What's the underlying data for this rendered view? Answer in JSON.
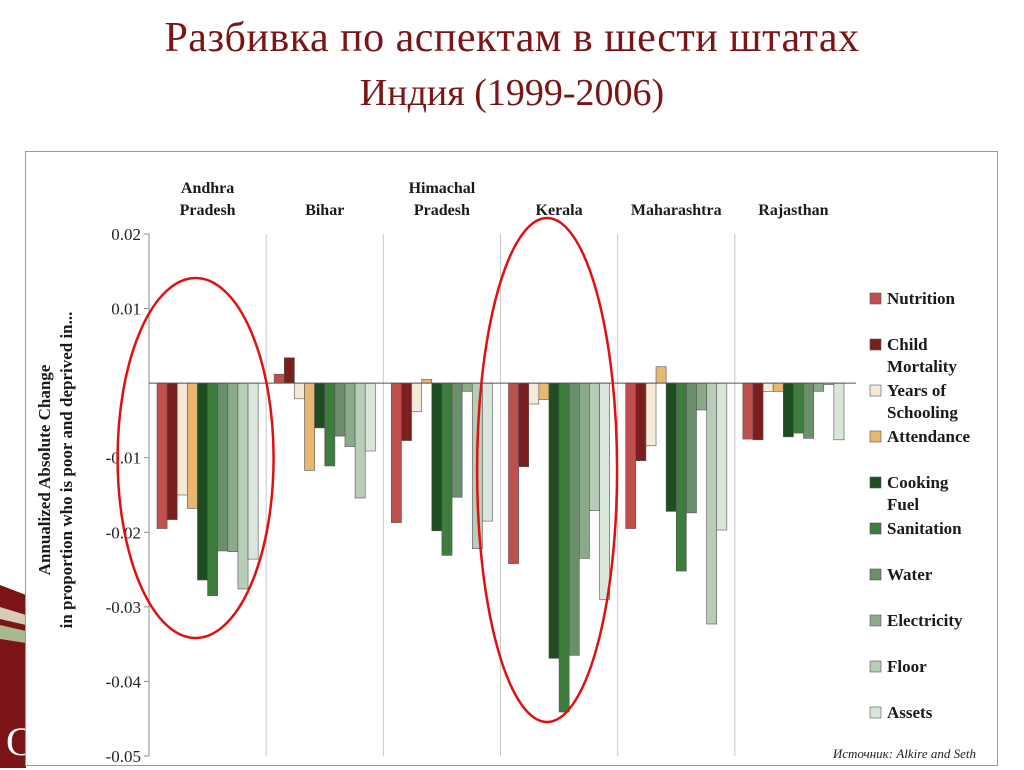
{
  "slide": {
    "title": "Разбивка по аспектам в шести штатах",
    "subtitle": "Индия (1999-2006)"
  },
  "chart_data": {
    "type": "bar",
    "ylabel_line1": "Annualized Absolute Change",
    "ylabel_line2": "in proportion who is poor and deprived in...",
    "ylim": [
      -0.05,
      0.02
    ],
    "yticks": [
      0.02,
      0.01,
      -0.01,
      -0.02,
      -0.03,
      -0.04,
      -0.05
    ],
    "ytick_labels": [
      "0.02",
      "0.01",
      "-0.01",
      "-0.02",
      "-0.03",
      "-0.04",
      "-0.05"
    ],
    "grid": false,
    "legend_position": "right",
    "categories": [
      "Andhra Pradesh",
      "Bihar",
      "Himachal Pradesh",
      "Kerala",
      "Maharashtra",
      "Rajasthan"
    ],
    "category_labels": [
      [
        "Andhra",
        "Pradesh"
      ],
      [
        "Bihar"
      ],
      [
        "Himachal",
        "Pradesh"
      ],
      [
        "Kerala"
      ],
      [
        "Maharashtra"
      ],
      [
        "Rajasthan"
      ]
    ],
    "series": [
      {
        "name": "Nutrition",
        "legend_lines": [
          "Nutrition"
        ],
        "color": "#c0504d",
        "values": [
          -0.0195,
          0.0012,
          -0.0187,
          -0.0242,
          -0.0195,
          -0.0075
        ]
      },
      {
        "name": "Child Mortality",
        "legend_lines": [
          "Child",
          "Mortality"
        ],
        "color": "#7b1e1e",
        "values": [
          -0.0183,
          0.0034,
          -0.0077,
          -0.0112,
          -0.0104,
          -0.0076
        ]
      },
      {
        "name": "Years of Schooling",
        "legend_lines": [
          "Years of",
          "Schooling"
        ],
        "color": "#f5ead8",
        "values": [
          -0.015,
          -0.0021,
          -0.0038,
          -0.0028,
          -0.0084,
          -0.0011
        ]
      },
      {
        "name": "Attendance",
        "legend_lines": [
          "Attendance"
        ],
        "color": "#e8b870",
        "values": [
          -0.0168,
          -0.0117,
          0.0005,
          -0.0022,
          0.0022,
          -0.0011
        ]
      },
      {
        "name": "Cooking Fuel",
        "legend_lines": [
          "Cooking",
          "Fuel"
        ],
        "color": "#1e4d22",
        "values": [
          -0.0264,
          -0.006,
          -0.0198,
          -0.0369,
          -0.0172,
          -0.0072
        ]
      },
      {
        "name": "Sanitation",
        "legend_lines": [
          "Sanitation"
        ],
        "color": "#3f7d3f",
        "values": [
          -0.0285,
          -0.0111,
          -0.0231,
          -0.0441,
          -0.0252,
          -0.0067
        ]
      },
      {
        "name": "Water",
        "legend_lines": [
          "Water"
        ],
        "color": "#6b8f6b",
        "values": [
          -0.0225,
          -0.0071,
          -0.0153,
          -0.0365,
          -0.0174,
          -0.0074
        ]
      },
      {
        "name": "Electricity",
        "legend_lines": [
          "Electricity"
        ],
        "color": "#8aaa8a",
        "values": [
          -0.0226,
          -0.0085,
          -0.0011,
          -0.0235,
          -0.0036,
          -0.0011
        ]
      },
      {
        "name": "Floor",
        "legend_lines": [
          "Floor"
        ],
        "color": "#b8ccb8",
        "values": [
          -0.0276,
          -0.0154,
          -0.0222,
          -0.0171,
          -0.0323,
          -0.0002
        ]
      },
      {
        "name": "Assets",
        "legend_lines": [
          "Assets"
        ],
        "color": "#dbe6db",
        "values": [
          -0.0236,
          -0.0091,
          -0.0185,
          -0.029,
          -0.0197,
          -0.0076
        ]
      }
    ],
    "highlight_ellipses_on": [
      "Andhra Pradesh",
      "Kerala"
    ],
    "highlight_color": "#e01010",
    "source_note": "Источник: Alkire and Seth"
  },
  "colors": {
    "title": "#7b1416",
    "axis": "#8c8c8c",
    "deco": "#7b1416"
  }
}
